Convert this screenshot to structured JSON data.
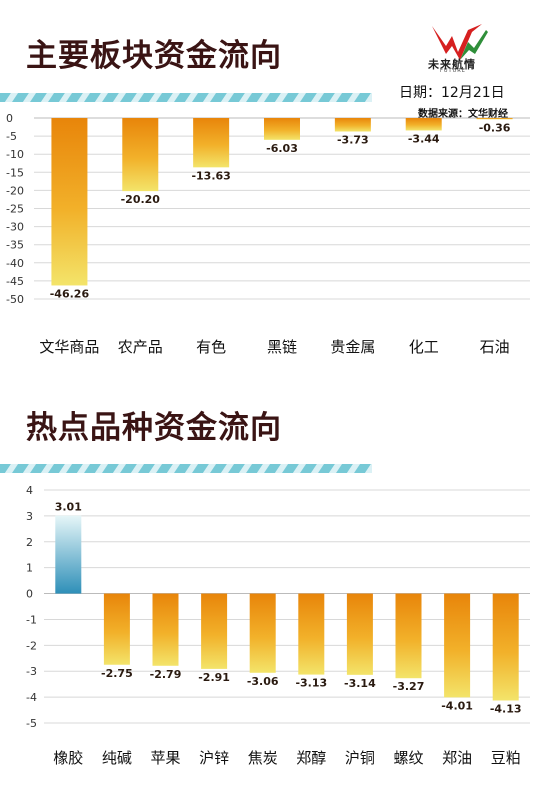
{
  "header": {
    "title1": "主要板块资金流向",
    "title2": "热点品种资金流向",
    "logo_text": "未来航情",
    "logo_sub": "FUTURE",
    "date": "日期：12月21日",
    "source": "数据来源：文华财经"
  },
  "colors": {
    "title": "#3a1414",
    "bar_top": "#e8850a",
    "bar_mid": "#f2b12a",
    "bar_bottom": "#f3e46a",
    "pos_top": "#e6f6f8",
    "pos_bottom": "#2e8fb8",
    "stripe_a": "#5fbfcf",
    "stripe_b": "#d7f0f4"
  },
  "chart_data": [
    {
      "type": "bar",
      "categories": [
        "文华商品",
        "农产品",
        "有色",
        "黑链",
        "贵金属",
        "化工",
        "石油"
      ],
      "values": [
        -46.26,
        -20.2,
        -13.63,
        -6.03,
        -3.73,
        -3.44,
        -0.36
      ],
      "labels": [
        "-46.26",
        "-20.20",
        "-13.63",
        "-6.03",
        "-3.73",
        "-3.44",
        "-0.36"
      ],
      "ylim": [
        -50,
        0
      ],
      "yticks": [
        0,
        -5,
        -10,
        -15,
        -20,
        -25,
        -30,
        -35,
        -40,
        -45,
        -50
      ],
      "grid": true,
      "xlabel": "",
      "ylabel": ""
    },
    {
      "type": "bar",
      "categories": [
        "橡胶",
        "纯碱",
        "苹果",
        "沪锌",
        "焦炭",
        "郑醇",
        "沪铜",
        "螺纹",
        "郑油",
        "豆粕"
      ],
      "values": [
        3.01,
        -2.75,
        -2.79,
        -2.91,
        -3.06,
        -3.13,
        -3.14,
        -3.27,
        -4.01,
        -4.13
      ],
      "labels": [
        "3.01",
        "-2.75",
        "-2.79",
        "-2.91",
        "-3.06",
        "-3.13",
        "-3.14",
        "-3.27",
        "-4.01",
        "-4.13"
      ],
      "ylim": [
        -5,
        4
      ],
      "yticks": [
        4,
        3,
        2,
        1,
        0,
        -1,
        -2,
        -3,
        -4,
        -5
      ],
      "grid": true,
      "xlabel": "",
      "ylabel": ""
    }
  ]
}
